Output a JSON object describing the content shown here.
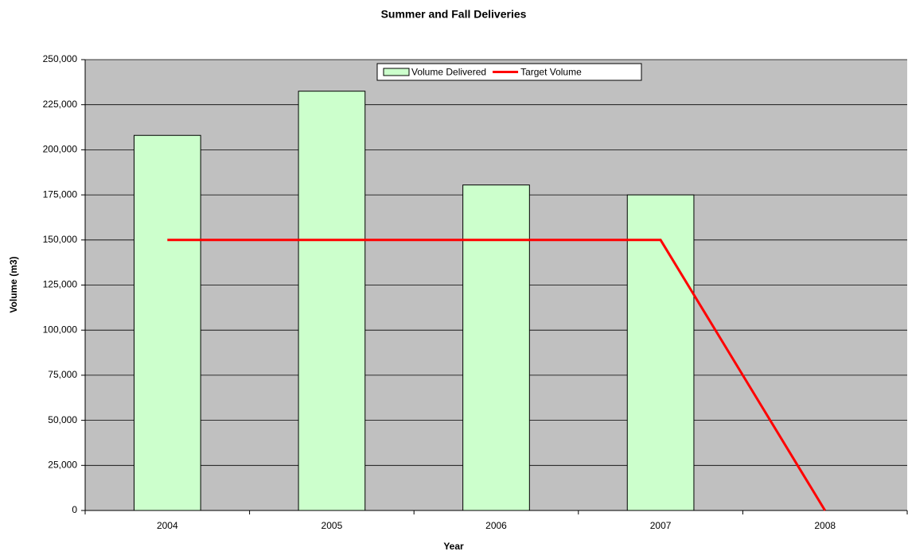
{
  "chart_data": {
    "type": "bar",
    "title": "Summer and Fall Deliveries",
    "x_label": "Year",
    "y_label": "Volume (m3)",
    "categories": [
      "2004",
      "2005",
      "2006",
      "2007",
      "2008"
    ],
    "series": [
      {
        "name": "Volume Delivered",
        "type": "bar",
        "color": "#ccffcc",
        "values": [
          208000,
          232500,
          180500,
          175000,
          null
        ]
      },
      {
        "name": "Target Volume",
        "type": "line",
        "color": "#ff0000",
        "values": [
          150000,
          150000,
          150000,
          150000,
          0
        ]
      }
    ],
    "ylim": [
      0,
      250000
    ],
    "yticks": [
      0,
      {
        "value": 25000,
        "label": "25,000"
      },
      {
        "value": 50000,
        "label": "50,000"
      },
      {
        "value": 75000,
        "label": "75,000"
      },
      {
        "value": 100000,
        "label": "100,000"
      },
      {
        "value": 125000,
        "label": "125,000"
      },
      {
        "value": 150000,
        "label": "150,000"
      },
      {
        "value": 175000,
        "label": "175,000"
      },
      {
        "value": 200000,
        "label": "200,000"
      },
      {
        "value": 225000,
        "label": "225,000"
      },
      {
        "value": 250000,
        "label": "250,000"
      }
    ],
    "grid": true,
    "plot_background": "#c0c0c0",
    "legend": "top"
  }
}
